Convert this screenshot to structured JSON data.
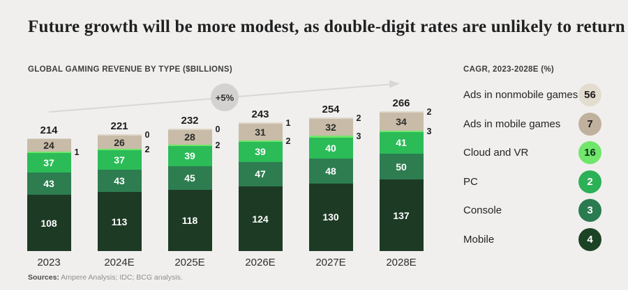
{
  "title": "Future growth will be more modest, as double-digit rates are unlikely to return",
  "chart_header": "GLOBAL GAMING REVENUE BY TYPE ($BILLIONS)",
  "sources": {
    "label": "Sources:",
    "text": "Ampere Analysis; IDC; BCG analysis."
  },
  "colors": {
    "background": "#f0efee",
    "arrow": "#d9d7d4",
    "annotation_badge": "#d3d2d0"
  },
  "legend": {
    "header": "CAGR, 2023-2028E (%)",
    "items": [
      {
        "label": "Ads in nonmobile games",
        "value": 56,
        "color": "#e3ddd0",
        "text_color": "#1b1b1b"
      },
      {
        "label": "Ads in mobile games",
        "value": 7,
        "color": "#c0b09e",
        "text_color": "#1b1b1b"
      },
      {
        "label": "Cloud and VR",
        "value": 16,
        "color": "#70e66b",
        "text_color": "#12301a"
      },
      {
        "label": "PC",
        "value": 2,
        "color": "#2cb156",
        "text_color": "#ffffff"
      },
      {
        "label": "Console",
        "value": 3,
        "color": "#2a7b4f",
        "text_color": "#ffffff"
      },
      {
        "label": "Mobile",
        "value": 4,
        "color": "#1d4325",
        "text_color": "#ffffff"
      }
    ]
  },
  "chart_data": {
    "type": "bar",
    "stacked": true,
    "title": "GLOBAL GAMING REVENUE BY TYPE ($BILLIONS)",
    "unit": "$billions",
    "annotation": "+5%",
    "annotation_meaning": "total revenue CAGR 2023-2028E",
    "categories": [
      "2023",
      "2024E",
      "2025E",
      "2026E",
      "2027E",
      "2028E"
    ],
    "totals": [
      214,
      221,
      232,
      243,
      254,
      266
    ],
    "series": [
      {
        "name": "Mobile",
        "color": "#1d3a25",
        "label_color": "#ffffff",
        "label_inside": true,
        "values": [
          108,
          113,
          118,
          124,
          130,
          137
        ]
      },
      {
        "name": "Console",
        "color": "#2e7d50",
        "label_color": "#ffffff",
        "label_inside": true,
        "values": [
          43,
          43,
          45,
          47,
          48,
          50
        ]
      },
      {
        "name": "PC",
        "color": "#2bbc58",
        "label_color": "#ffffff",
        "label_inside": true,
        "values": [
          37,
          37,
          39,
          39,
          40,
          41
        ]
      },
      {
        "name": "Cloud and VR",
        "color": "#70e66b",
        "label_color": "#1d1d1d",
        "label_inside": false,
        "values": [
          1,
          2,
          2,
          2,
          3,
          3
        ]
      },
      {
        "name": "Ads in mobile games",
        "color": "#c8bca8",
        "label_color": "#2b2b2b",
        "label_inside": true,
        "values": [
          24,
          26,
          28,
          31,
          32,
          34
        ]
      },
      {
        "name": "Ads in nonmobile games",
        "color": "#ded7c8",
        "label_color": "#1d1d1d",
        "label_inside": false,
        "values": [
          null,
          0,
          0,
          1,
          2,
          2
        ]
      }
    ],
    "legend_position": "right",
    "grid": false
  }
}
